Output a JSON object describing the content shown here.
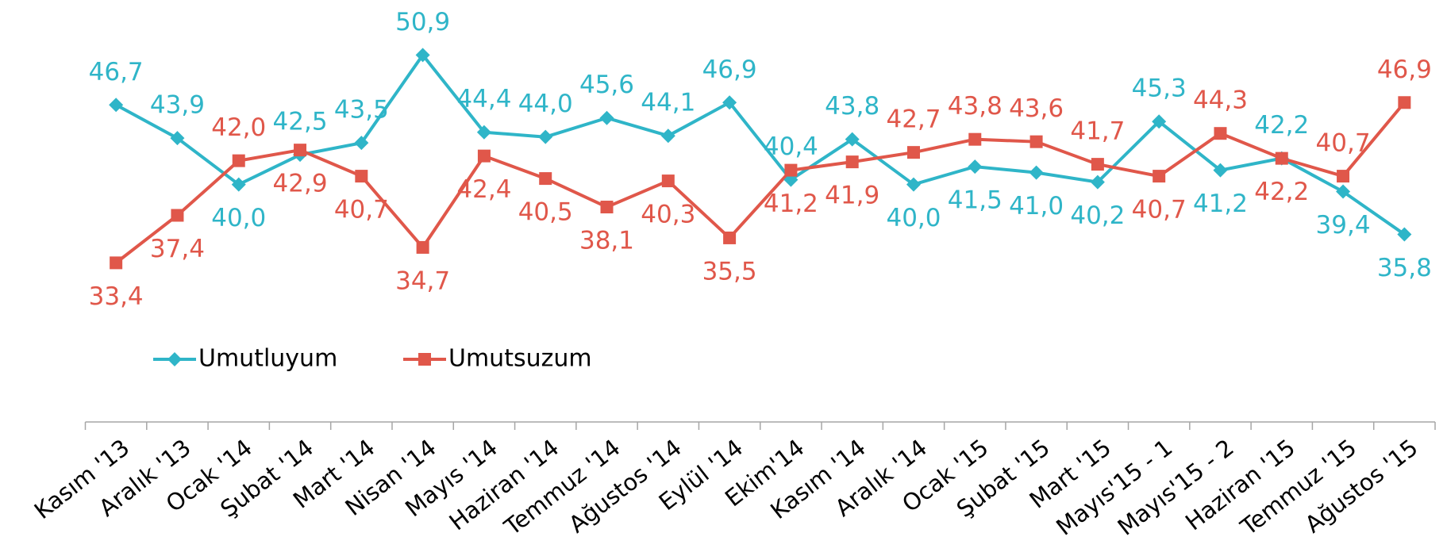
{
  "chart_data": {
    "type": "line",
    "categories": [
      "Kasım '13",
      "Aralık '13",
      "Ocak '14",
      "Şubat '14",
      "Mart '14",
      "Nisan '14",
      "Mayıs '14",
      "Haziran '14",
      "Temmuz '14",
      "Ağustos '14",
      "Eylül '14",
      "Ekim'14",
      "Kasım '14",
      "Aralık '14",
      "Ocak '15",
      "Şubat '15",
      "Mart '15",
      "Mayıs'15 - 1",
      "Mayıs'15 - 2",
      "Haziran '15",
      "Temmuz '15",
      "Ağustos '15"
    ],
    "series": [
      {
        "name": "Umutluyum",
        "color": "#2fb5c8",
        "marker": "diamond",
        "values": [
          46.7,
          43.9,
          40.0,
          42.5,
          43.5,
          50.9,
          44.4,
          44.0,
          45.6,
          44.1,
          46.9,
          40.4,
          43.8,
          40.0,
          41.5,
          41.0,
          40.2,
          45.3,
          41.2,
          42.2,
          39.4,
          35.8
        ],
        "value_labels": [
          "46,7",
          "43,9",
          "40,0",
          "42,5",
          "43,5",
          "50,9",
          "44,4",
          "44,0",
          "45,6",
          "44,1",
          "46,9",
          "40,4",
          "43,8",
          "40,0",
          "41,5",
          "41,0",
          "40,2",
          "45,3",
          "41,2",
          "42,2",
          "39,4",
          "35,8"
        ]
      },
      {
        "name": "Umutsuzum",
        "color": "#e0574a",
        "marker": "square",
        "values": [
          33.4,
          37.4,
          42.0,
          42.9,
          40.7,
          34.7,
          42.4,
          40.5,
          38.1,
          40.3,
          35.5,
          41.2,
          41.9,
          42.7,
          43.8,
          43.6,
          41.7,
          40.7,
          44.3,
          42.2,
          40.7,
          46.9
        ],
        "value_labels": [
          "33,4",
          "37,4",
          "42,0",
          "42,9",
          "40,7",
          "34,7",
          "42,4",
          "40,5",
          "38,1",
          "40,3",
          "35,5",
          "41,2",
          "41,9",
          "42,7",
          "43,8",
          "43,6",
          "41,7",
          "40,7",
          "44,3",
          "42,2",
          "40,7",
          "46,9"
        ]
      }
    ],
    "ylim": [
      20,
      55
    ],
    "legend": "middle-left"
  }
}
